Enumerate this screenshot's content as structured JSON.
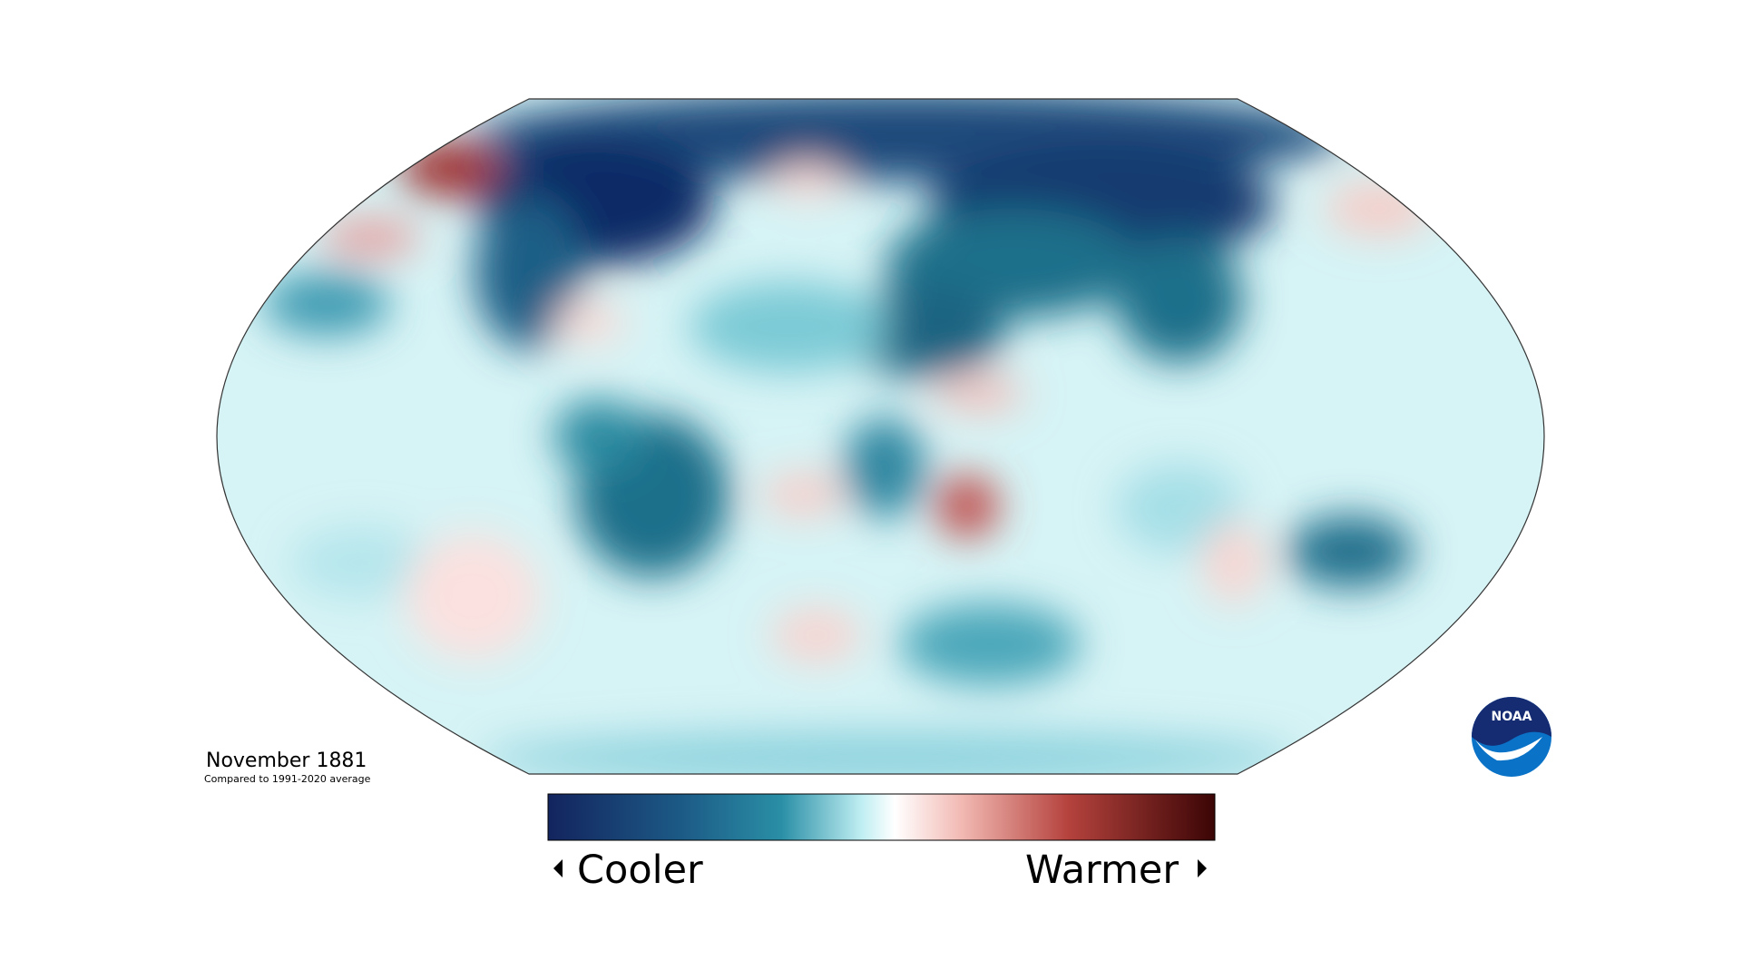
{
  "map": {
    "title": "November 1881",
    "subtitle": "Compared to 1991-2020 average"
  },
  "legend": {
    "low_label": "Cooler",
    "high_label": "Warmer"
  },
  "logo": {
    "text": "NOAA"
  }
}
